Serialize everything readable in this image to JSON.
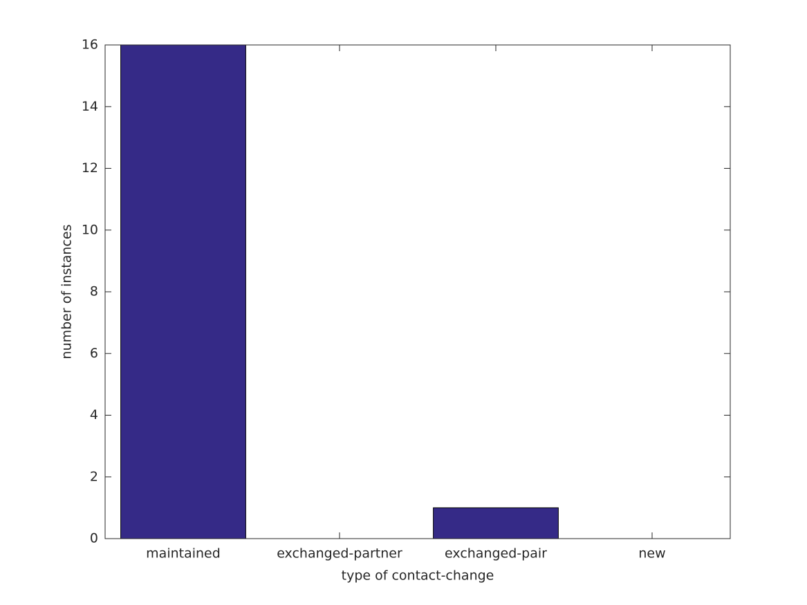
{
  "chart_data": {
    "type": "bar",
    "xlabel": "type of contact-change",
    "ylabel": "number of instances",
    "categories": [
      "maintained",
      "exchanged-partner",
      "exchanged-pair",
      "new"
    ],
    "values": [
      16,
      0,
      1,
      0
    ],
    "color": "#352a87",
    "ylim": [
      0,
      16
    ],
    "yticks": [
      0,
      2,
      4,
      6,
      8,
      10,
      12,
      14,
      16
    ]
  }
}
